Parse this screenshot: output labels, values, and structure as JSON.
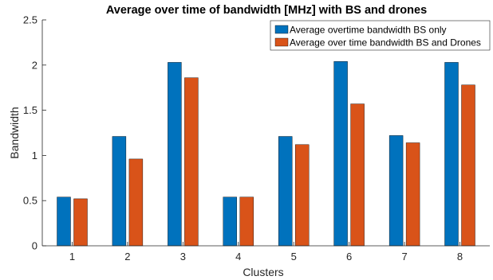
{
  "colors": {
    "series_1": "#0072BD",
    "series_2": "#D95319",
    "axis": "#262626"
  },
  "chart_data": {
    "type": "bar",
    "title": "Average over time of bandwidth [MHz] with BS and drones",
    "xlabel": "Clusters",
    "ylabel": "Bandwidth",
    "categories": [
      "1",
      "2",
      "3",
      "4",
      "5",
      "6",
      "7",
      "8"
    ],
    "series": [
      {
        "name": "Average overtime bandwidth BS only",
        "values": [
          0.54,
          1.21,
          2.03,
          0.54,
          1.21,
          2.04,
          1.22,
          2.03
        ]
      },
      {
        "name": "Average over time bandwidth BS and Drones",
        "values": [
          0.52,
          0.96,
          1.86,
          0.54,
          1.12,
          1.57,
          1.14,
          1.78
        ]
      }
    ],
    "ylim": [
      0,
      2.5
    ],
    "yticks": [
      "0",
      "0.5",
      "1",
      "1.5",
      "2",
      "2.5"
    ],
    "grid": false,
    "legend_position": "top-right"
  }
}
